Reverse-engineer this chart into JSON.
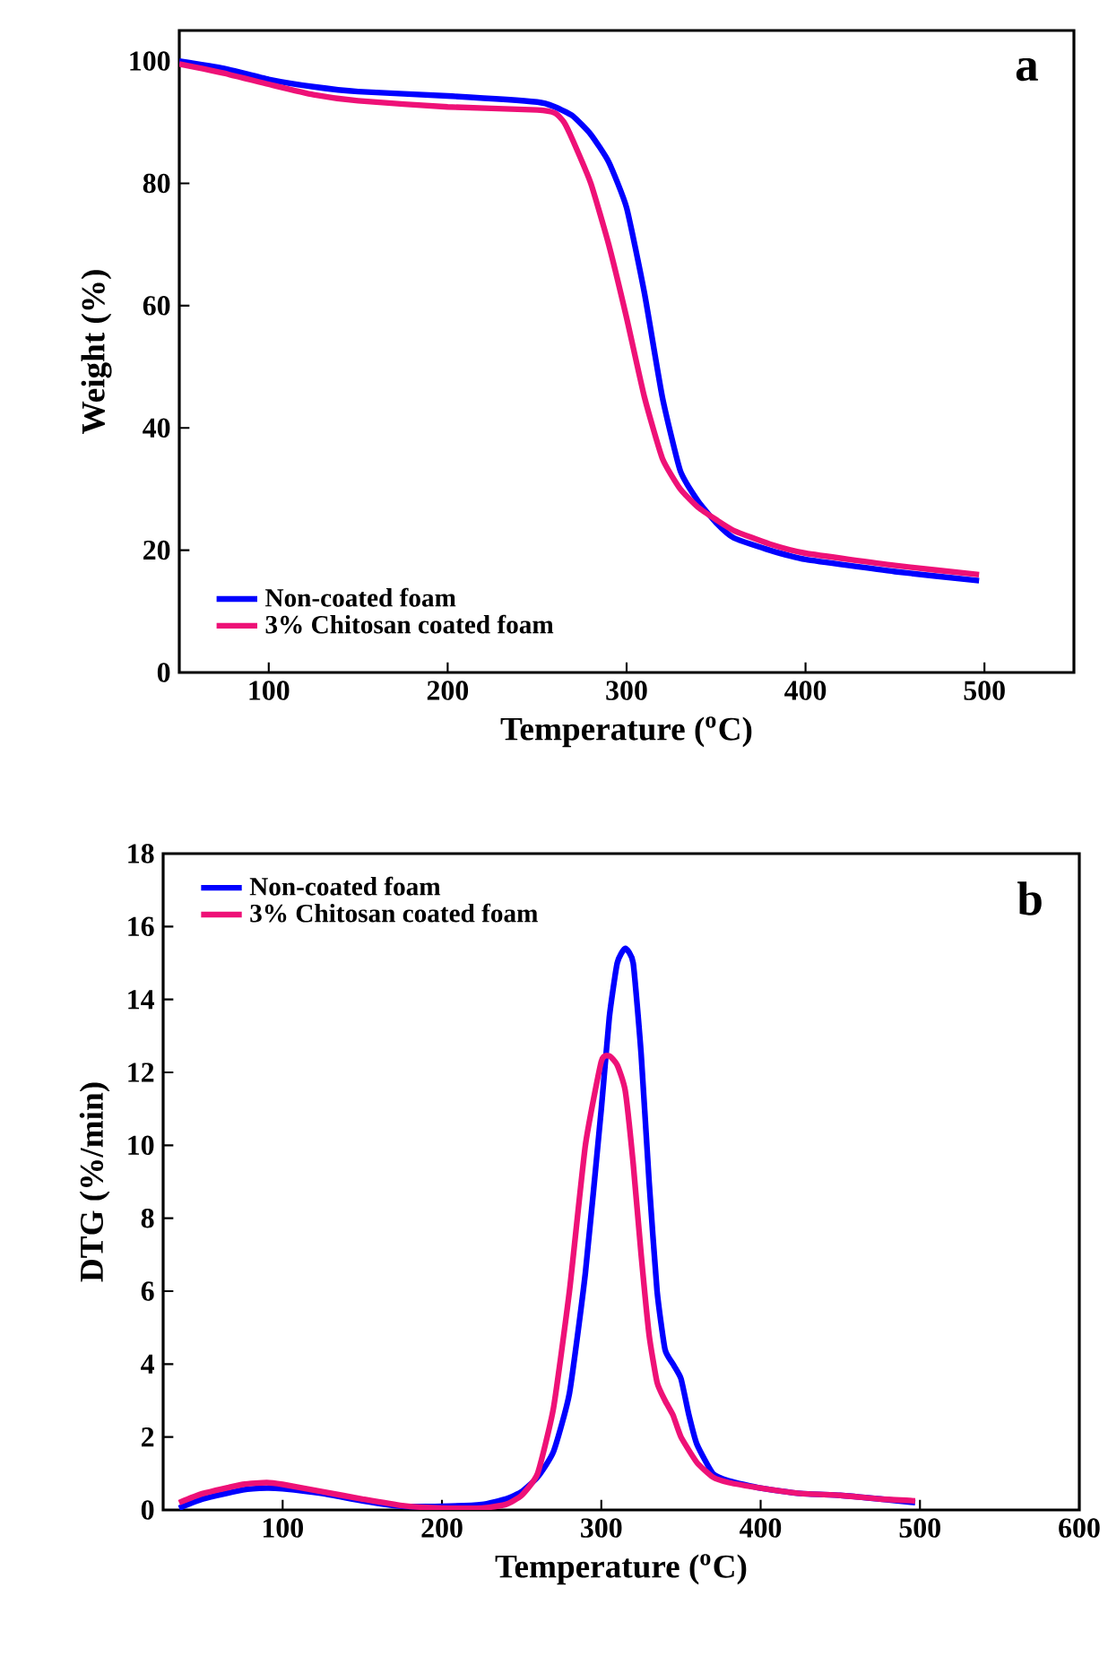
{
  "chart_data": [
    {
      "type": "line",
      "xlabel": "Temperature ($^{o}$C)",
      "ylabel": "Weight (%)",
      "annotations": [
        "a"
      ],
      "xlim": [
        50,
        550
      ],
      "ylim": [
        0,
        105
      ],
      "xticks": [
        100,
        200,
        300,
        400,
        500
      ],
      "yticks": [
        0,
        20,
        40,
        60,
        80,
        100
      ],
      "legend": "bottom left",
      "grid": false,
      "marker": "none",
      "line_style": "solid",
      "series": [
        {
          "name": "Non-coated foam",
          "color": "#0000ff",
          "x": [
            50,
            75,
            100,
            125,
            150,
            200,
            250,
            260,
            270,
            280,
            290,
            300,
            310,
            320,
            330,
            340,
            350,
            360,
            380,
            400,
            450,
            497
          ],
          "values": [
            100,
            98.8,
            97,
            95.8,
            95,
            94.3,
            93.3,
            92.5,
            91,
            88,
            83.5,
            76,
            62,
            45,
            33,
            28,
            24.5,
            22,
            20,
            18.5,
            16.5,
            15
          ]
        },
        {
          "name": "3% Chitosan coated foam",
          "color": "#ee1177",
          "x": [
            50,
            75,
            100,
            125,
            150,
            200,
            250,
            260,
            265,
            270,
            280,
            290,
            300,
            310,
            320,
            330,
            340,
            350,
            360,
            380,
            400,
            450,
            497
          ],
          "values": [
            99.5,
            98,
            96.2,
            94.5,
            93.5,
            92.5,
            92,
            91.5,
            90,
            87,
            80,
            70,
            58,
            45,
            35,
            30,
            27,
            25,
            23.2,
            21,
            19.5,
            17.5,
            16
          ]
        }
      ]
    },
    {
      "type": "line",
      "xlabel": "Temperature ($^{o}$C)",
      "ylabel": "DTG (%/min)",
      "annotations": [
        "b"
      ],
      "xlim": [
        25,
        600
      ],
      "ylim": [
        0,
        18
      ],
      "xticks": [
        100,
        200,
        300,
        400,
        500,
        600
      ],
      "yticks": [
        0,
        2,
        4,
        6,
        8,
        10,
        12,
        14,
        16,
        18
      ],
      "legend": "top left",
      "grid": false,
      "marker": "none",
      "line_style": "solid",
      "series": [
        {
          "name": "Non-coated foam",
          "color": "#0000ff",
          "x": [
            35,
            50,
            75,
            90,
            100,
            125,
            150,
            175,
            200,
            225,
            240,
            250,
            260,
            270,
            280,
            290,
            300,
            305,
            310,
            315,
            320,
            325,
            330,
            335,
            340,
            345,
            350,
            355,
            360,
            370,
            380,
            400,
            425,
            450,
            475,
            497
          ],
          "values": [
            0.05,
            0.3,
            0.55,
            0.6,
            0.58,
            0.45,
            0.25,
            0.1,
            0.1,
            0.15,
            0.3,
            0.5,
            0.9,
            1.6,
            3.2,
            6.5,
            11,
            13.5,
            15,
            15.4,
            15,
            12.5,
            9,
            6,
            4.4,
            4,
            3.6,
            2.6,
            1.8,
            1.0,
            0.8,
            0.6,
            0.45,
            0.4,
            0.3,
            0.2
          ]
        },
        {
          "name": "3% Chitosan coated foam",
          "color": "#ee1177",
          "x": [
            35,
            50,
            75,
            90,
            100,
            125,
            150,
            175,
            200,
            225,
            240,
            250,
            260,
            270,
            280,
            290,
            300,
            305,
            310,
            315,
            320,
            325,
            330,
            335,
            340,
            345,
            350,
            360,
            370,
            380,
            400,
            425,
            450,
            475,
            497
          ],
          "values": [
            0.2,
            0.45,
            0.7,
            0.75,
            0.7,
            0.5,
            0.3,
            0.12,
            0.05,
            0.05,
            0.15,
            0.4,
            1.0,
            2.8,
            6,
            10,
            12.3,
            12.45,
            12.2,
            11.5,
            9.5,
            7,
            4.8,
            3.5,
            3.0,
            2.6,
            2.0,
            1.3,
            0.9,
            0.75,
            0.6,
            0.45,
            0.4,
            0.3,
            0.25
          ]
        }
      ]
    }
  ]
}
